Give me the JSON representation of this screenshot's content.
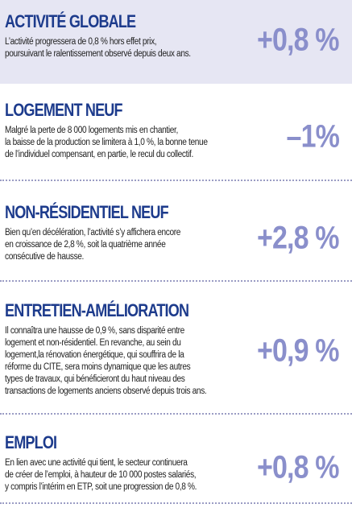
{
  "sections": [
    {
      "title": "ACTIVITÉ GLOBALE",
      "lines": [
        "L’activité progressera de 0,8 % hors effet prix,",
        "poursuivant le ralentissement observé depuis deux ans."
      ],
      "value": "+0,8 %"
    },
    {
      "title": "LOGEMENT NEUF",
      "lines": [
        "Malgré la perte de 8 000 logements mis en chantier,",
        "la baisse de la production se limitera à 1,0 %, la bonne tenue",
        "de l’individuel compensant, en partie, le recul du collectif."
      ],
      "value": "–1%"
    },
    {
      "title": "NON-RÉSIDENTIEL NEUF",
      "lines": [
        "Bien qu’en décélération, l’activité s’y affichera encore",
        "en croissance de 2,8 %, soit la quatrième année",
        "consécutive de hausse."
      ],
      "value": "+2,8 %"
    },
    {
      "title": "ENTRETIEN-AMÉLIORATION",
      "lines": [
        "Il connaîtra une hausse de 0,9 %, sans disparité entre",
        "logement et non-résidentiel. En revanche, au sein du",
        "logement,la rénovation énergétique, qui souffrira de la",
        "réforme du CITE, sera moins dynamique que les autres",
        "types de travaux, qui bénéficieront du haut niveau des",
        "transactions de logements anciens observé depuis trois ans."
      ],
      "value": "+0,9 %"
    },
    {
      "title": "EMPLOI",
      "lines": [
        "En lien avec une activité qui tient, le secteur continuera",
        "de créer de l’emploi, à hauteur de 10 000 postes salariés,",
        "y compris l’intérim en ETP, soit une progression de 0,8 %."
      ],
      "value": "+0,8 %"
    }
  ]
}
